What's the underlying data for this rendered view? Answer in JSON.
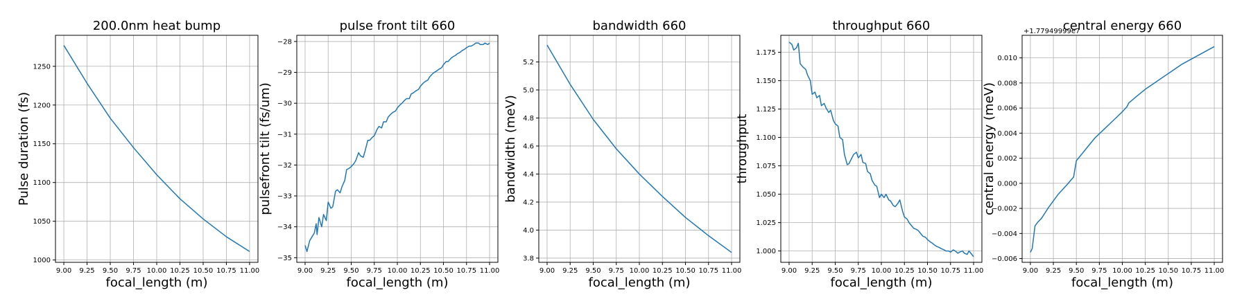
{
  "chart_data": [
    {
      "type": "line",
      "title": "200.0nm heat bump",
      "xlabel": "focal_length (m)",
      "ylabel": "Pulse duration (fs)",
      "xlim": [
        8.91,
        11.09
      ],
      "ylim": [
        997,
        1290
      ],
      "xticks": [
        9.0,
        9.25,
        9.5,
        9.75,
        10.0,
        10.25,
        10.5,
        10.75,
        11.0
      ],
      "xtick_labels": [
        "9.00",
        "9.25",
        "9.50",
        "9.75",
        "10.00",
        "10.25",
        "10.50",
        "10.75",
        "11.00"
      ],
      "yticks": [
        1000,
        1050,
        1100,
        1150,
        1200,
        1250
      ],
      "ytick_labels": [
        "1000",
        "1050",
        "1100",
        "1150",
        "1200",
        "1250"
      ],
      "grid": true,
      "color": "#1f77b4",
      "x": [
        9.0,
        9.25,
        9.5,
        9.75,
        10.0,
        10.25,
        10.5,
        10.75,
        11.0
      ],
      "y": [
        1277,
        1228,
        1183,
        1145,
        1110,
        1079,
        1053,
        1030,
        1011
      ]
    },
    {
      "type": "line",
      "title": "pulse front tilt 660",
      "xlabel": "focal_length (m)",
      "ylabel": "pulsefront tilt (fs/um)",
      "xlim": [
        8.91,
        11.09
      ],
      "ylim": [
        -35.15,
        -27.8
      ],
      "xticks": [
        9.0,
        9.25,
        9.5,
        9.75,
        10.0,
        10.25,
        10.5,
        10.75,
        11.0
      ],
      "xtick_labels": [
        "9.00",
        "9.25",
        "9.50",
        "9.75",
        "10.00",
        "10.25",
        "10.50",
        "10.75",
        "11.00"
      ],
      "yticks": [
        -35,
        -34,
        -33,
        -32,
        -31,
        -30,
        -29,
        -28
      ],
      "ytick_labels": [
        "−35",
        "−34",
        "−33",
        "−32",
        "−31",
        "−30",
        "−29",
        "−28"
      ],
      "grid": true,
      "color": "#1f77b4",
      "x": [
        9.0,
        9.02,
        9.05,
        9.08,
        9.1,
        9.12,
        9.13,
        9.15,
        9.18,
        9.2,
        9.23,
        9.25,
        9.28,
        9.3,
        9.33,
        9.35,
        9.38,
        9.4,
        9.43,
        9.45,
        9.48,
        9.5,
        9.53,
        9.55,
        9.58,
        9.6,
        9.63,
        9.65,
        9.68,
        9.7,
        9.73,
        9.75,
        9.78,
        9.8,
        9.83,
        9.85,
        9.88,
        9.9,
        9.93,
        9.95,
        9.98,
        10.0,
        10.03,
        10.05,
        10.08,
        10.1,
        10.13,
        10.15,
        10.18,
        10.2,
        10.23,
        10.25,
        10.28,
        10.3,
        10.33,
        10.35,
        10.38,
        10.4,
        10.43,
        10.45,
        10.48,
        10.5,
        10.53,
        10.55,
        10.58,
        10.6,
        10.63,
        10.65,
        10.68,
        10.7,
        10.73,
        10.75,
        10.78,
        10.8,
        10.83,
        10.85,
        10.88,
        10.9,
        10.93,
        10.95,
        10.98,
        11.0
      ],
      "y": [
        -34.6,
        -34.8,
        -34.45,
        -34.3,
        -34.2,
        -33.9,
        -34.25,
        -33.7,
        -34.0,
        -33.6,
        -33.8,
        -33.2,
        -33.4,
        -33.35,
        -32.85,
        -32.8,
        -32.9,
        -32.7,
        -32.5,
        -32.15,
        -32.1,
        -32.05,
        -31.95,
        -31.85,
        -31.6,
        -31.7,
        -31.75,
        -31.55,
        -31.2,
        -31.2,
        -31.1,
        -31.05,
        -30.85,
        -30.75,
        -30.8,
        -30.6,
        -30.6,
        -30.45,
        -30.35,
        -30.3,
        -30.25,
        -30.15,
        -30.05,
        -30.0,
        -29.9,
        -29.85,
        -29.85,
        -29.7,
        -29.65,
        -29.6,
        -29.55,
        -29.45,
        -29.35,
        -29.3,
        -29.25,
        -29.15,
        -29.05,
        -29.0,
        -28.95,
        -28.9,
        -28.85,
        -28.75,
        -28.65,
        -28.65,
        -28.55,
        -28.5,
        -28.45,
        -28.4,
        -28.35,
        -28.3,
        -28.25,
        -28.2,
        -28.15,
        -28.15,
        -28.1,
        -28.05,
        -28.05,
        -28.1,
        -28.1,
        -28.05,
        -28.1,
        -28.05
      ]
    },
    {
      "type": "line",
      "title": "bandwidth 660",
      "xlabel": "focal_length (m)",
      "ylabel": "bandwidth (meV)",
      "xlim": [
        8.91,
        11.09
      ],
      "ylim": [
        3.77,
        5.39
      ],
      "xticks": [
        9.0,
        9.25,
        9.5,
        9.75,
        10.0,
        10.25,
        10.5,
        10.75,
        11.0
      ],
      "xtick_labels": [
        "9.00",
        "9.25",
        "9.50",
        "9.75",
        "10.00",
        "10.25",
        "10.50",
        "10.75",
        "11.00"
      ],
      "yticks": [
        3.8,
        4.0,
        4.2,
        4.4,
        4.6,
        4.8,
        5.0,
        5.2
      ],
      "ytick_labels": [
        "3.8",
        "4.0",
        "4.2",
        "4.4",
        "4.6",
        "4.8",
        "5.0",
        "5.2"
      ],
      "grid": true,
      "color": "#1f77b4",
      "x": [
        9.0,
        9.25,
        9.5,
        9.75,
        10.0,
        10.25,
        10.5,
        10.75,
        11.0
      ],
      "y": [
        5.32,
        5.04,
        4.79,
        4.58,
        4.4,
        4.24,
        4.09,
        3.96,
        3.84
      ]
    },
    {
      "type": "line",
      "title": "throughput 660",
      "xlabel": "focal_length (m)",
      "ylabel": "throughput",
      "xlim": [
        8.91,
        11.09
      ],
      "ylim": [
        0.99,
        1.19
      ],
      "xticks": [
        9.0,
        9.25,
        9.5,
        9.75,
        10.0,
        10.25,
        10.5,
        10.75,
        11.0
      ],
      "xtick_labels": [
        "9.00",
        "9.25",
        "9.50",
        "9.75",
        "10.00",
        "10.25",
        "10.50",
        "10.75",
        "11.00"
      ],
      "yticks": [
        1.0,
        1.025,
        1.05,
        1.075,
        1.1,
        1.125,
        1.15,
        1.175
      ],
      "ytick_labels": [
        "1.000",
        "1.025",
        "1.050",
        "1.075",
        "1.100",
        "1.125",
        "1.150",
        "1.175"
      ],
      "grid": true,
      "color": "#1f77b4",
      "x": [
        9.0,
        9.03,
        9.05,
        9.08,
        9.1,
        9.12,
        9.15,
        9.18,
        9.2,
        9.23,
        9.25,
        9.28,
        9.3,
        9.33,
        9.35,
        9.38,
        9.4,
        9.43,
        9.45,
        9.48,
        9.5,
        9.53,
        9.55,
        9.58,
        9.6,
        9.63,
        9.65,
        9.68,
        9.7,
        9.73,
        9.75,
        9.78,
        9.8,
        9.83,
        9.85,
        9.88,
        9.9,
        9.93,
        9.95,
        9.98,
        10.0,
        10.03,
        10.05,
        10.08,
        10.1,
        10.13,
        10.15,
        10.18,
        10.2,
        10.23,
        10.25,
        10.28,
        10.3,
        10.33,
        10.35,
        10.38,
        10.4,
        10.43,
        10.45,
        10.48,
        10.5,
        10.53,
        10.55,
        10.58,
        10.6,
        10.63,
        10.65,
        10.68,
        10.7,
        10.73,
        10.75,
        10.78,
        10.8,
        10.83,
        10.85,
        10.88,
        10.9,
        10.93,
        10.95,
        10.98,
        11.0
      ],
      "y": [
        1.184,
        1.182,
        1.177,
        1.179,
        1.183,
        1.165,
        1.162,
        1.16,
        1.155,
        1.15,
        1.138,
        1.14,
        1.135,
        1.137,
        1.128,
        1.13,
        1.126,
        1.122,
        1.124,
        1.115,
        1.112,
        1.11,
        1.1,
        1.098,
        1.085,
        1.076,
        1.077,
        1.082,
        1.085,
        1.087,
        1.082,
        1.085,
        1.078,
        1.077,
        1.07,
        1.068,
        1.062,
        1.058,
        1.057,
        1.047,
        1.05,
        1.047,
        1.05,
        1.045,
        1.044,
        1.04,
        1.039,
        1.042,
        1.045,
        1.035,
        1.03,
        1.028,
        1.025,
        1.022,
        1.02,
        1.019,
        1.018,
        1.015,
        1.013,
        1.012,
        1.01,
        1.008,
        1.007,
        1.005,
        1.004,
        1.003,
        1.002,
        1.001,
        1.0,
        1.0,
        0.999,
        1.001,
        1.0,
        0.998,
        0.999,
        1.0,
        0.998,
        0.997,
        1.0,
        0.997,
        0.995
      ]
    },
    {
      "type": "line",
      "title": "central energy 660",
      "xlabel": "focal_length (m)",
      "ylabel": "central energy (meV)",
      "offset_text": "+1.77949999e7",
      "xlim": [
        8.91,
        11.09
      ],
      "ylim": [
        -0.0063,
        0.0118
      ],
      "xticks": [
        9.0,
        9.25,
        9.5,
        9.75,
        10.0,
        10.25,
        10.5,
        10.75,
        11.0
      ],
      "xtick_labels": [
        "9.00",
        "9.25",
        "9.50",
        "9.75",
        "10.00",
        "10.25",
        "10.50",
        "10.75",
        "11.00"
      ],
      "yticks": [
        -0.006,
        -0.004,
        -0.002,
        0.0,
        0.002,
        0.004,
        0.006,
        0.008,
        0.01
      ],
      "ytick_labels": [
        "−0.006",
        "−0.004",
        "−0.002",
        "0.000",
        "0.002",
        "0.004",
        "0.006",
        "0.008",
        "0.010"
      ],
      "grid": true,
      "color": "#1f77b4",
      "x": [
        9.0,
        9.02,
        9.05,
        9.08,
        9.12,
        9.2,
        9.3,
        9.4,
        9.47,
        9.5,
        9.6,
        9.7,
        9.8,
        9.9,
        10.0,
        10.05,
        10.07,
        10.15,
        10.25,
        10.35,
        10.45,
        10.55,
        10.65,
        10.75,
        10.85,
        10.95,
        11.0
      ],
      "y": [
        -0.0055,
        -0.0052,
        -0.0034,
        -0.0031,
        -0.0028,
        -0.0019,
        -0.0009,
        -0.0001,
        0.0005,
        0.0018,
        0.0027,
        0.0036,
        0.0043,
        0.005,
        0.0057,
        0.0061,
        0.0064,
        0.0069,
        0.0075,
        0.008,
        0.0085,
        0.009,
        0.0095,
        0.0099,
        0.0103,
        0.0107,
        0.0109
      ]
    }
  ]
}
